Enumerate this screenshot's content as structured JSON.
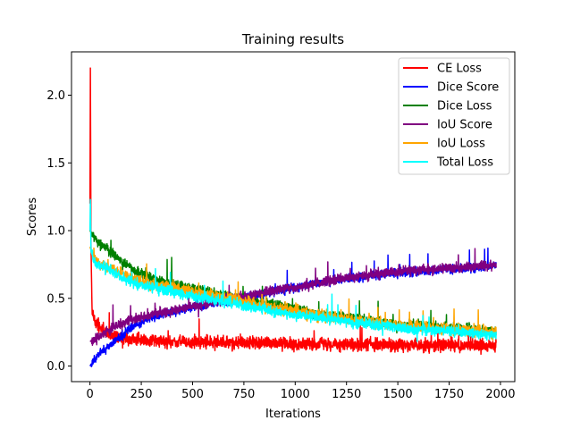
{
  "chart_data": {
    "type": "line",
    "title": "Training results",
    "xlabel": "Iterations",
    "ylabel": "Scores",
    "xlim": [
      -90,
      2070
    ],
    "ylim": [
      -0.115,
      2.32
    ],
    "xticks": [
      0,
      250,
      500,
      750,
      1000,
      1250,
      1500,
      1750,
      2000
    ],
    "yticks": [
      0.0,
      0.5,
      1.0,
      1.5,
      2.0
    ],
    "xtick_labels": [
      "0",
      "250",
      "500",
      "750",
      "1000",
      "1250",
      "1500",
      "1750",
      "2000"
    ],
    "ytick_labels": [
      "0.0",
      "0.5",
      "1.0",
      "1.5",
      "2.0"
    ],
    "legend_position": "top-right",
    "grid": false,
    "n_iterations": 1980,
    "series": [
      {
        "name": "CE Loss",
        "color": "#ff0000",
        "x": [
          0,
          2,
          5,
          10,
          20,
          40,
          70,
          100,
          150,
          200,
          300,
          400,
          600,
          800,
          1000,
          1200,
          1400,
          1600,
          1800,
          1980
        ],
        "values": [
          1.2,
          2.2,
          0.9,
          0.42,
          0.34,
          0.3,
          0.26,
          0.23,
          0.21,
          0.2,
          0.19,
          0.18,
          0.17,
          0.17,
          0.16,
          0.16,
          0.16,
          0.15,
          0.15,
          0.15
        ]
      },
      {
        "name": "Dice Score",
        "color": "#0000ff",
        "x": [
          0,
          20,
          50,
          100,
          150,
          200,
          250,
          300,
          400,
          500,
          600,
          700,
          800,
          900,
          1000,
          1100,
          1200,
          1300,
          1400,
          1500,
          1600,
          1700,
          1800,
          1900,
          1980
        ],
        "values": [
          0.0,
          0.05,
          0.1,
          0.16,
          0.22,
          0.28,
          0.32,
          0.36,
          0.4,
          0.43,
          0.46,
          0.49,
          0.52,
          0.55,
          0.58,
          0.61,
          0.63,
          0.65,
          0.67,
          0.69,
          0.7,
          0.71,
          0.72,
          0.73,
          0.74
        ]
      },
      {
        "name": "Dice Loss",
        "color": "#008000",
        "x": [
          0,
          20,
          50,
          100,
          150,
          200,
          300,
          400,
          500,
          600,
          700,
          800,
          900,
          1000,
          1100,
          1200,
          1300,
          1400,
          1500,
          1600,
          1700,
          1800,
          1900,
          1980
        ],
        "values": [
          1.0,
          0.95,
          0.9,
          0.84,
          0.78,
          0.72,
          0.65,
          0.61,
          0.57,
          0.54,
          0.51,
          0.48,
          0.45,
          0.42,
          0.39,
          0.37,
          0.35,
          0.33,
          0.31,
          0.3,
          0.29,
          0.28,
          0.27,
          0.26
        ]
      },
      {
        "name": "IoU Score",
        "color": "#800080",
        "x": [
          0,
          20,
          50,
          100,
          150,
          200,
          300,
          400,
          500,
          600,
          700,
          800,
          900,
          1000,
          1100,
          1200,
          1300,
          1400,
          1500,
          1600,
          1700,
          1800,
          1900,
          1980
        ],
        "values": [
          0.18,
          0.2,
          0.22,
          0.27,
          0.31,
          0.34,
          0.38,
          0.41,
          0.44,
          0.47,
          0.5,
          0.53,
          0.56,
          0.58,
          0.61,
          0.64,
          0.66,
          0.68,
          0.7,
          0.71,
          0.72,
          0.73,
          0.74,
          0.75
        ]
      },
      {
        "name": "IoU Loss",
        "color": "#ffa500",
        "x": [
          0,
          20,
          50,
          100,
          150,
          200,
          300,
          400,
          500,
          600,
          700,
          800,
          900,
          1000,
          1100,
          1200,
          1300,
          1400,
          1500,
          1600,
          1700,
          1800,
          1900,
          1980
        ],
        "values": [
          0.88,
          0.8,
          0.75,
          0.72,
          0.68,
          0.65,
          0.61,
          0.58,
          0.55,
          0.52,
          0.49,
          0.46,
          0.43,
          0.41,
          0.38,
          0.36,
          0.34,
          0.32,
          0.3,
          0.29,
          0.28,
          0.27,
          0.26,
          0.25
        ]
      },
      {
        "name": "Total Loss",
        "color": "#00ffff",
        "x": [
          0,
          2,
          5,
          20,
          50,
          100,
          150,
          200,
          300,
          400,
          500,
          600,
          700,
          800,
          900,
          1000,
          1100,
          1200,
          1300,
          1400,
          1500,
          1600,
          1700,
          1800,
          1900,
          1980
        ],
        "values": [
          1.0,
          1.23,
          0.85,
          0.77,
          0.74,
          0.7,
          0.66,
          0.62,
          0.58,
          0.55,
          0.52,
          0.49,
          0.46,
          0.43,
          0.4,
          0.38,
          0.36,
          0.34,
          0.32,
          0.3,
          0.28,
          0.27,
          0.26,
          0.25,
          0.24,
          0.23
        ]
      }
    ]
  }
}
